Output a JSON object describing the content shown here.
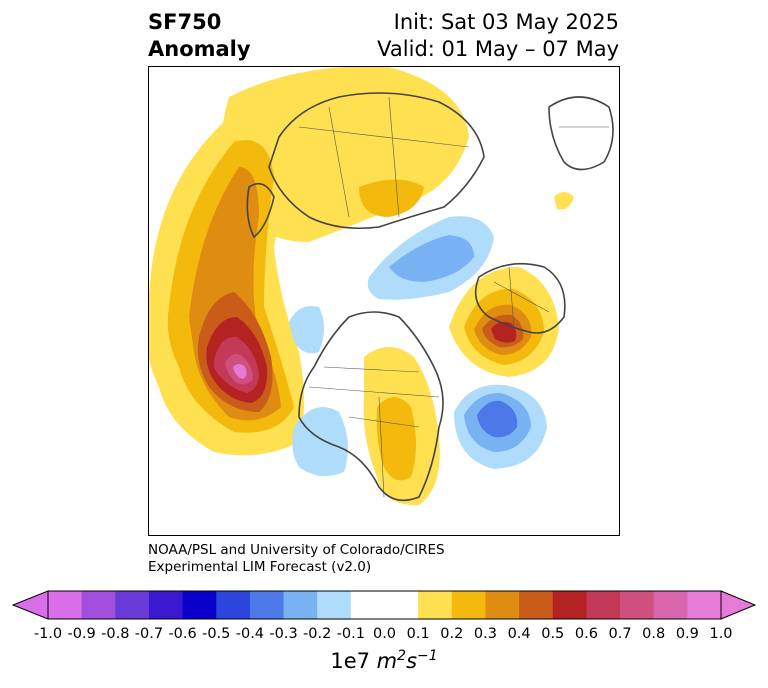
{
  "title": {
    "left_line1": "SF750",
    "left_line2": "Anomaly",
    "right_line1": "Init: Sat 03 May 2025",
    "right_line2": "Valid: 01 May – 07 May"
  },
  "credit": {
    "line1": "NOAA/PSL and University of Colorado/CIRES",
    "line2": "Experimental LIM Forecast (v2.0)"
  },
  "colorbar": {
    "tick_labels": [
      "-1.0",
      "-0.9",
      "-0.8",
      "-0.7",
      "-0.6",
      "-0.5",
      "-0.4",
      "-0.3",
      "-0.2",
      "-0.1",
      "0.0",
      "0.1",
      "0.2",
      "0.3",
      "0.4",
      "0.5",
      "0.6",
      "0.7",
      "0.8",
      "0.9",
      "1.0"
    ],
    "colors": [
      "#da6ee8",
      "#a24fe0",
      "#6a3ad8",
      "#3a18d0",
      "#0a00cc",
      "#2a44dc",
      "#4d78e8",
      "#78b2f2",
      "#b0dcfb",
      "#ffffff",
      "#ffffff",
      "#fee050",
      "#f3b90c",
      "#de8c12",
      "#c95c18",
      "#b52222",
      "#c23a58",
      "#cf4f7f",
      "#d966ac",
      "#e57bd6"
    ],
    "extend_low_color": "#da6ee8",
    "extend_high_color": "#e57bd6",
    "units_prefix": "1e7",
    "units_m": "m",
    "units_m_exp": "2",
    "units_s": "s",
    "units_s_exp": "−1"
  }
}
